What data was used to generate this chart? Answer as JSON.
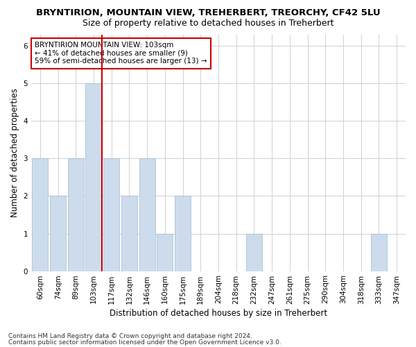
{
  "title": "BRYNTIRION, MOUNTAIN VIEW, TREHERBERT, TREORCHY, CF42 5LU",
  "subtitle": "Size of property relative to detached houses in Treherbert",
  "xlabel": "Distribution of detached houses by size in Treherbert",
  "ylabel": "Number of detached properties",
  "bin_labels": [
    "60sqm",
    "74sqm",
    "89sqm",
    "103sqm",
    "117sqm",
    "132sqm",
    "146sqm",
    "160sqm",
    "175sqm",
    "189sqm",
    "204sqm",
    "218sqm",
    "232sqm",
    "247sqm",
    "261sqm",
    "275sqm",
    "290sqm",
    "304sqm",
    "318sqm",
    "333sqm",
    "347sqm"
  ],
  "bar_heights": [
    3,
    2,
    3,
    5,
    3,
    2,
    3,
    1,
    2,
    0,
    0,
    0,
    1,
    0,
    0,
    0,
    0,
    0,
    0,
    1,
    0
  ],
  "bar_color": "#ccdcec",
  "bar_edge_color": "#a0b8d0",
  "vline_bar_index": 3,
  "vline_color": "#cc0000",
  "annotation_text": "BRYNTIRION MOUNTAIN VIEW: 103sqm\n← 41% of detached houses are smaller (9)\n59% of semi-detached houses are larger (13) →",
  "annotation_box_color": "white",
  "annotation_box_edge_color": "#cc0000",
  "ylim": [
    0,
    6.3
  ],
  "yticks": [
    0,
    1,
    2,
    3,
    4,
    5,
    6
  ],
  "footer_line1": "Contains HM Land Registry data © Crown copyright and database right 2024.",
  "footer_line2": "Contains public sector information licensed under the Open Government Licence v3.0.",
  "bg_color": "#ffffff",
  "plot_bg_color": "#ffffff",
  "grid_color": "#d0d0d0",
  "title_fontsize": 9.5,
  "subtitle_fontsize": 9,
  "axis_label_fontsize": 8.5,
  "tick_fontsize": 7.5,
  "annotation_fontsize": 7.5,
  "footer_fontsize": 6.5
}
